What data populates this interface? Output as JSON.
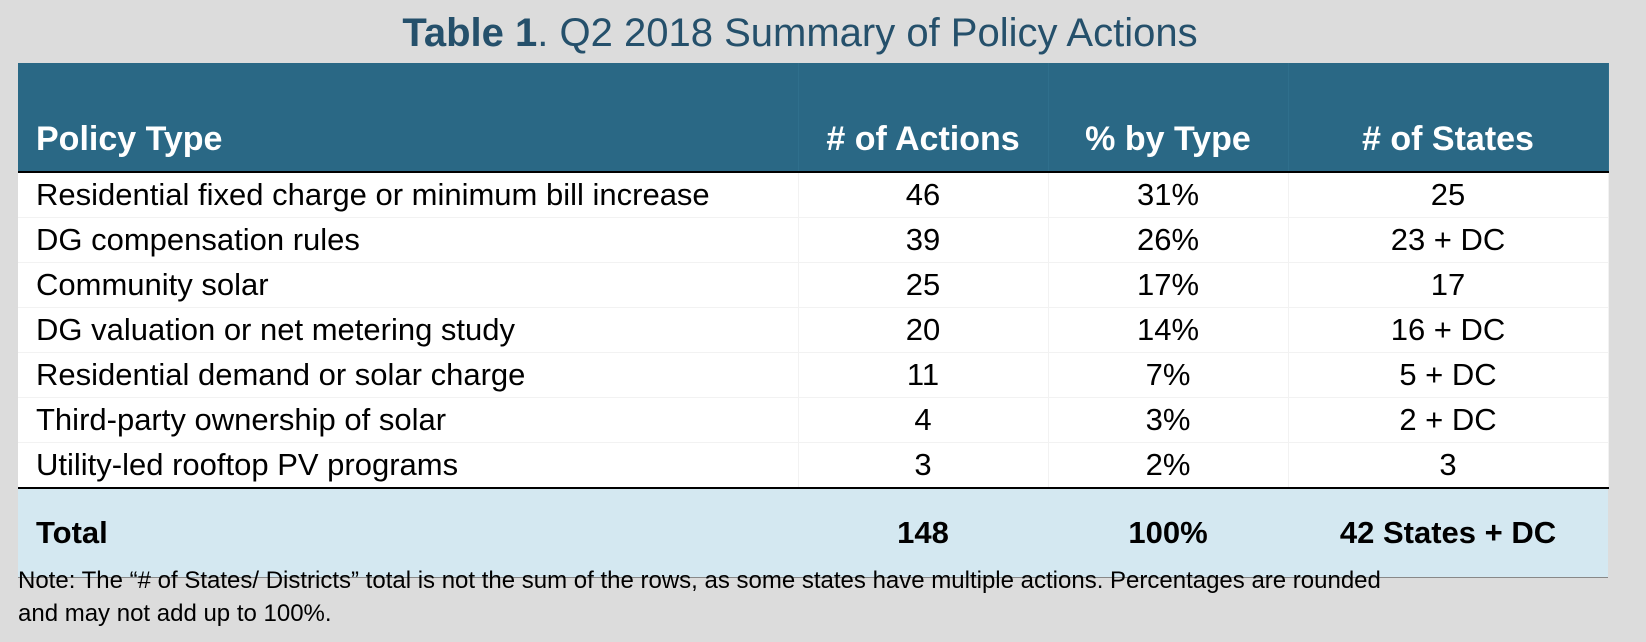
{
  "title": {
    "bold": "Table 1",
    "rest": ". Q2 2018 Summary of Policy Actions"
  },
  "table": {
    "headers": [
      "Policy Type",
      "# of Actions",
      "% by Type",
      "# of States"
    ],
    "rows": [
      [
        "Residential fixed charge or minimum bill increase",
        "46",
        "31%",
        "25"
      ],
      [
        "DG compensation rules",
        "39",
        "26%",
        "23 + DC"
      ],
      [
        "Community solar",
        "25",
        "17%",
        "17"
      ],
      [
        "DG valuation or net metering study",
        "20",
        "14%",
        "16 + DC"
      ],
      [
        "Residential demand or solar charge",
        "11",
        "7%",
        "5 + DC"
      ],
      [
        "Third-party ownership of solar",
        "4",
        "3%",
        "2 + DC"
      ],
      [
        "Utility-led rooftop PV programs",
        "3",
        "2%",
        "3"
      ]
    ],
    "total": [
      "Total",
      "148",
      "100%",
      "42 States + DC"
    ]
  },
  "note": {
    "line1": "Note: The “# of States/ Districts” total is not the sum of the rows, as some states have multiple actions. Percentages are rounded",
    "line2": "and may not add up to 100%."
  },
  "colors": {
    "header_bg": "#2a6885",
    "title_text": "#25506b",
    "total_bg": "#d4e8f1",
    "page_bg": "#dcdcdc"
  }
}
